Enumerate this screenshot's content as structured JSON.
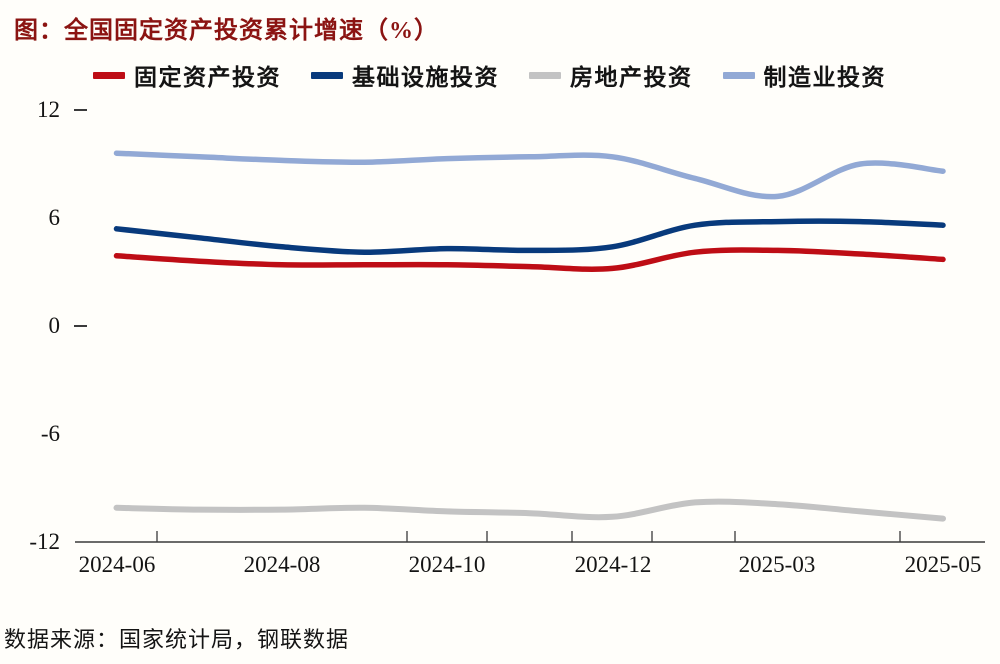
{
  "title": "图：全国固定资产投资累计增速（%）",
  "source_note": "数据来源：国家统计局，钢联数据",
  "colors": {
    "background": "#FFFEFA",
    "title_text": "#8B1412",
    "label_text": "#141414",
    "axis": "#3A3A3A",
    "fai": "#BE0D15",
    "infra": "#083A7C",
    "realestate": "#C3C3C3",
    "manufacturing": "#92A9D5"
  },
  "chart_data": {
    "type": "line",
    "title": "图：全国固定资产投资累计增速（%）",
    "categories": [
      "2024-06",
      "2024-07",
      "2024-08",
      "2024-09",
      "2024-10",
      "2024-11",
      "2024-12",
      "2025-02",
      "2025-03",
      "2025-04",
      "2025-05"
    ],
    "series": [
      {
        "name": "固定资产投资",
        "color_key": "fai",
        "values": [
          3.9,
          3.6,
          3.4,
          3.4,
          3.4,
          3.3,
          3.2,
          4.1,
          4.2,
          4.0,
          3.7
        ]
      },
      {
        "name": "基础设施投资",
        "color_key": "infra",
        "values": [
          5.4,
          4.9,
          4.4,
          4.1,
          4.3,
          4.2,
          4.4,
          5.6,
          5.8,
          5.8,
          5.6
        ]
      },
      {
        "name": "房地产投资",
        "color_key": "realestate",
        "values": [
          -10.1,
          -10.2,
          -10.2,
          -10.1,
          -10.3,
          -10.4,
          -10.6,
          -9.8,
          -9.9,
          -10.3,
          -10.7
        ]
      },
      {
        "name": "制造业投资",
        "color_key": "manufacturing",
        "values": [
          9.6,
          9.4,
          9.2,
          9.1,
          9.3,
          9.4,
          9.4,
          8.2,
          7.2,
          9.0,
          8.6
        ]
      }
    ],
    "x_axis_labels": [
      "2024-06",
      "2024-08",
      "2024-10",
      "2024-12",
      "2025-03",
      "2025-05"
    ],
    "y_ticks": [
      12,
      6,
      0,
      -6,
      -12
    ],
    "ylim": [
      -12,
      12
    ],
    "xlabel": "",
    "ylabel": "",
    "grid": false,
    "legend_position": "top"
  }
}
